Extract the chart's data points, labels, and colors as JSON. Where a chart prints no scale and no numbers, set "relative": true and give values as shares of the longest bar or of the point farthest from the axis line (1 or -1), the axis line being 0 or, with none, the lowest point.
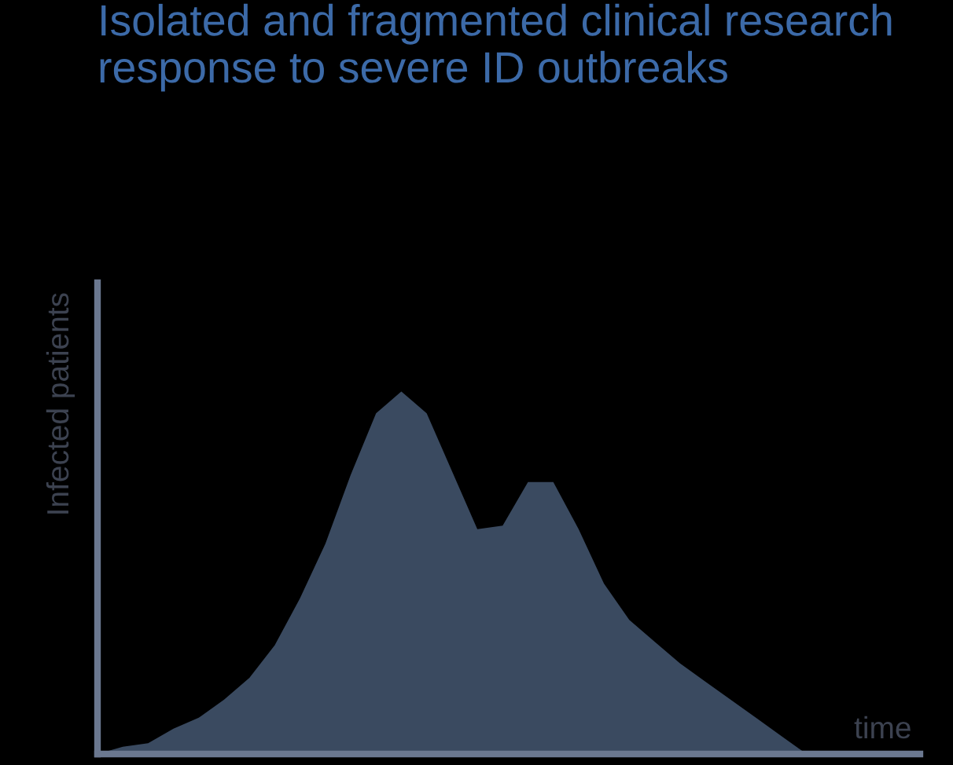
{
  "chart_data": {
    "type": "area",
    "title": "Isolated and fragmented clinical research response to severe ID outbreaks",
    "xlabel": "time",
    "ylabel": "Infected patients",
    "relative": true,
    "categories": [
      null,
      null,
      null,
      null,
      null,
      null,
      null,
      null,
      null,
      null,
      null,
      null,
      null,
      null,
      null,
      null,
      null,
      null,
      null,
      null,
      null,
      null,
      null,
      null,
      null,
      null,
      null,
      null,
      null
    ],
    "series": [
      {
        "color": "#3a4a60",
        "values": [
          0,
          0.02,
          0.03,
          0.07,
          0.1,
          0.15,
          0.21,
          0.3,
          0.43,
          0.58,
          0.77,
          0.94,
          1,
          0.94,
          0.78,
          0.62,
          0.63,
          0.75,
          0.75,
          0.62,
          0.47,
          0.37,
          0.31,
          0.25,
          0.2,
          0.15,
          0.1,
          0.05,
          0
        ]
      }
    ]
  }
}
